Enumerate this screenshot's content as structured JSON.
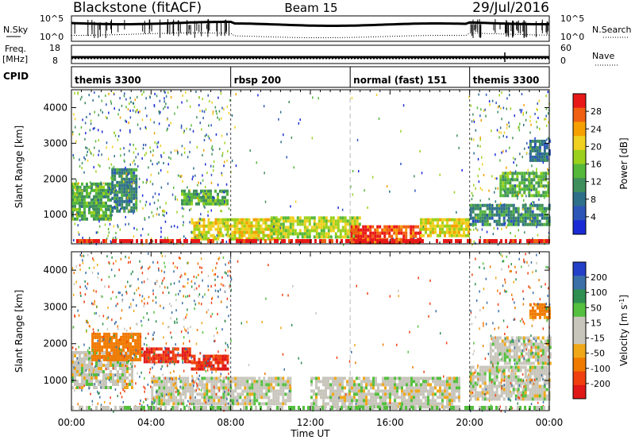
{
  "header": {
    "radar": "Blackstone (fitACF)",
    "beam": "Beam 15",
    "date": "29/Jul/2016"
  },
  "strip_labels": {
    "nsky": "N.Sky",
    "nsky_tick_hi": "10^5",
    "nsky_tick_lo": "10^0",
    "nsearch": "N.Search",
    "nsearch_tick_hi": "10^5",
    "nsearch_tick_lo": "10^0",
    "freq": "Freq.",
    "freq_unit": "[MHz]",
    "freq_tick_hi": "18",
    "freq_tick_lo": "8",
    "nave": "Nave",
    "nave_tick_hi": "60",
    "nave_tick_lo": "0",
    "cpid": "CPID"
  },
  "cpid_segments": [
    {
      "label": "themis 3300",
      "start_hour": 0
    },
    {
      "label": "rbsp 200",
      "start_hour": 8
    },
    {
      "label": "normal (fast) 151",
      "start_hour": 14
    },
    {
      "label": "themis 3300",
      "start_hour": 20
    }
  ],
  "colors": {
    "power_scale": [
      "#1a2bd6",
      "#2d55b8",
      "#2e6f8a",
      "#3f8f5c",
      "#55b83a",
      "#9bd11c",
      "#f0d020",
      "#f5a000",
      "#f06010",
      "#e81818"
    ],
    "velocity_scale": [
      "#e01818",
      "#f04010",
      "#f07a00",
      "#f0a818",
      "#c8c6bc",
      "#c8c6bc",
      "#55c040",
      "#2f8f50",
      "#3a6fa8",
      "#2440c8"
    ],
    "grey": "#c8c6bc"
  },
  "chart_data": [
    {
      "type": "heatmap",
      "name": "power",
      "ylabel": "Slant Range [km]",
      "ylim": [
        180,
        4500
      ],
      "yticks": [
        1000,
        2000,
        3000,
        4000
      ],
      "xlim": [
        0,
        24
      ],
      "colorbar": {
        "label": "Power [dB]",
        "ticks": [
          "28",
          "24",
          "20",
          "16",
          "12",
          "8",
          "4"
        ],
        "range": [
          0,
          32
        ]
      },
      "regions": [
        {
          "t0": 0.0,
          "t1": 2.0,
          "r0": 900,
          "r1": 1900,
          "value": 14
        },
        {
          "t0": 2.0,
          "t1": 3.3,
          "r0": 1100,
          "r1": 2300,
          "value": 10
        },
        {
          "t0": 5.5,
          "t1": 7.8,
          "r0": 1300,
          "r1": 1700,
          "value": 14
        },
        {
          "t0": 6.0,
          "t1": 10.5,
          "r0": 300,
          "r1": 900,
          "value": 20
        },
        {
          "t0": 10.0,
          "t1": 14.5,
          "r0": 400,
          "r1": 950,
          "value": 18
        },
        {
          "t0": 14.0,
          "t1": 17.5,
          "r0": 250,
          "r1": 700,
          "value": 28
        },
        {
          "t0": 17.5,
          "t1": 20.0,
          "r0": 400,
          "r1": 900,
          "value": 20
        },
        {
          "t0": 20.0,
          "t1": 24.0,
          "r0": 700,
          "r1": 1300,
          "value": 10
        },
        {
          "t0": 21.5,
          "t1": 24.0,
          "r0": 1500,
          "r1": 2200,
          "value": 14
        },
        {
          "t0": 23.0,
          "t1": 24.0,
          "r0": 2500,
          "r1": 3100,
          "value": 8
        }
      ]
    },
    {
      "type": "heatmap",
      "name": "velocity",
      "ylabel": "Slant Range [km]",
      "xlabel": "Time UT",
      "ylim": [
        180,
        4500
      ],
      "yticks": [
        1000,
        2000,
        3000,
        4000
      ],
      "xlim": [
        0,
        24
      ],
      "xticks": [
        "00:00",
        "04:00",
        "08:00",
        "12:00",
        "16:00",
        "20:00",
        "00:00"
      ],
      "colorbar": {
        "label": "Velocity [m s^-1]",
        "ticks": [
          "200",
          "100",
          "50",
          "15",
          "-15",
          "-50",
          "-100",
          "-200"
        ],
        "range": [
          -250,
          250
        ]
      },
      "regions": [
        {
          "t0": 0.0,
          "t1": 3.0,
          "r0": 800,
          "r1": 1800,
          "value": 0
        },
        {
          "t0": 1.0,
          "t1": 3.5,
          "r0": 1600,
          "r1": 2300,
          "value": -80
        },
        {
          "t0": 3.5,
          "t1": 6.0,
          "r0": 1500,
          "r1": 1900,
          "value": -200
        },
        {
          "t0": 6.0,
          "t1": 7.8,
          "r0": 1300,
          "r1": 1700,
          "value": -200
        },
        {
          "t0": 4.0,
          "t1": 11.0,
          "r0": 400,
          "r1": 1100,
          "value": 0
        },
        {
          "t0": 12.0,
          "t1": 19.5,
          "r0": 300,
          "r1": 1100,
          "value": 0
        },
        {
          "t0": 20.0,
          "t1": 24.0,
          "r0": 500,
          "r1": 1400,
          "value": 0
        },
        {
          "t0": 21.0,
          "t1": 24.0,
          "r0": 1500,
          "r1": 2200,
          "value": 0
        },
        {
          "t0": 23.0,
          "t1": 24.0,
          "r0": 2700,
          "r1": 3100,
          "value": -60
        }
      ]
    }
  ]
}
